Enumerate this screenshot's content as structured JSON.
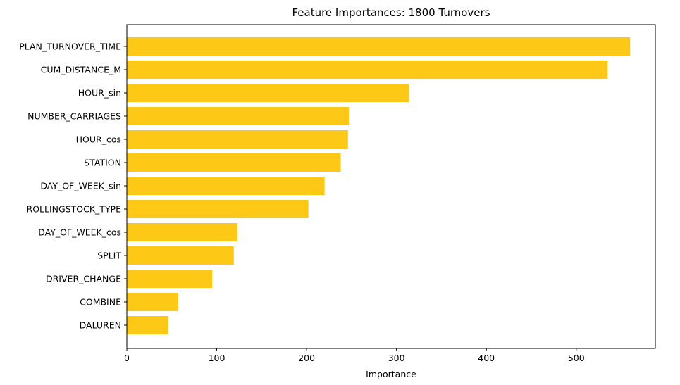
{
  "chart_data": {
    "type": "bar",
    "orientation": "horizontal",
    "title": "Feature Importances: 1800 Turnovers",
    "xlabel": "Importance",
    "ylabel": "",
    "bar_color": "#fec817",
    "xlim": [
      0,
      588
    ],
    "xticks": [
      0,
      100,
      200,
      300,
      400,
      500
    ],
    "grid": false,
    "categories": [
      "PLAN_TURNOVER_TIME",
      "CUM_DISTANCE_M",
      "HOUR_sin",
      "NUMBER_CARRIAGES",
      "HOUR_cos",
      "STATION",
      "DAY_OF_WEEK_sin",
      "ROLLINGSTOCK_TYPE",
      "DAY_OF_WEEK_cos",
      "SPLIT",
      "DRIVER_CHANGE",
      "COMBINE",
      "DALUREN"
    ],
    "values": [
      560,
      535,
      314,
      247,
      246,
      238,
      220,
      202,
      123,
      119,
      95,
      57,
      46
    ]
  }
}
